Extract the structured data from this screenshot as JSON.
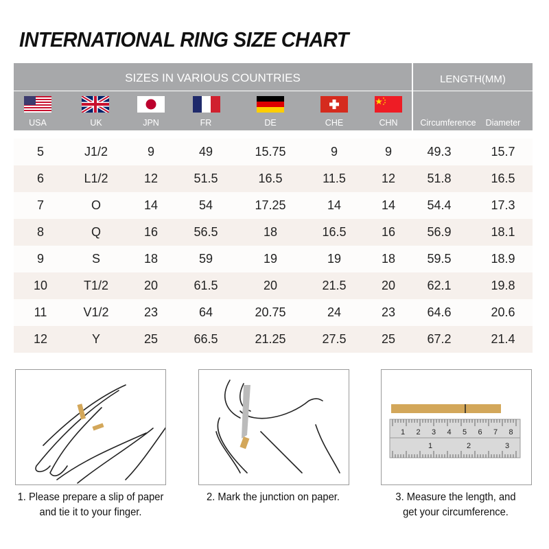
{
  "title": "INTERNATIONAL RING SIZE CHART",
  "header": {
    "sizes_label": "SIZES IN VARIOUS COUNTRIES",
    "length_label": "LENGTH(MM)",
    "columns": [
      {
        "label": "USA",
        "flag": "us-flag-icon"
      },
      {
        "label": "UK",
        "flag": "uk-flag-icon"
      },
      {
        "label": "JPN",
        "flag": "japan-flag-icon"
      },
      {
        "label": "FR",
        "flag": "france-flag-icon"
      },
      {
        "label": "DE",
        "flag": "germany-flag-icon"
      },
      {
        "label": "CHE",
        "flag": "switzerland-flag-icon"
      },
      {
        "label": "CHN",
        "flag": "china-flag-icon"
      },
      {
        "label": "Circumference"
      },
      {
        "label": "Diameter"
      }
    ]
  },
  "rows": [
    [
      "5",
      "J1/2",
      "9",
      "49",
      "15.75",
      "9",
      "9",
      "49.3",
      "15.7"
    ],
    [
      "6",
      "L1/2",
      "12",
      "51.5",
      "16.5",
      "11.5",
      "12",
      "51.8",
      "16.5"
    ],
    [
      "7",
      "O",
      "14",
      "54",
      "17.25",
      "14",
      "14",
      "54.4",
      "17.3"
    ],
    [
      "8",
      "Q",
      "16",
      "56.5",
      "18",
      "16.5",
      "16",
      "56.9",
      "18.1"
    ],
    [
      "9",
      "S",
      "18",
      "59",
      "19",
      "19",
      "18",
      "59.5",
      "18.9"
    ],
    [
      "10",
      "T1/2",
      "20",
      "61.5",
      "20",
      "21.5",
      "20",
      "62.1",
      "19.8"
    ],
    [
      "11",
      "V1/2",
      "23",
      "64",
      "20.75",
      "24",
      "23",
      "64.6",
      "20.6"
    ],
    [
      "12",
      "Y",
      "25",
      "66.5",
      "21.25",
      "27.5",
      "25",
      "67.2",
      "21.4"
    ]
  ],
  "colors": {
    "header": "#a7a8aa",
    "row_alt": "#f6f0ec",
    "row": "#fdfcfb",
    "paper": "#d3a75a"
  },
  "steps": [
    {
      "line1": "1. Please prepare a slip of paper",
      "line2": "and tie it to your finger."
    },
    {
      "line1": "2. Mark the junction on paper.",
      "line2": ""
    },
    {
      "line1": "3. Measure the length, and",
      "line2": "get your circumference."
    }
  ],
  "ruler": {
    "cm_ticks": [
      "1",
      "2",
      "3",
      "4",
      "5",
      "6",
      "7",
      "8"
    ],
    "inch_ticks": [
      "1",
      "2",
      "3"
    ]
  }
}
